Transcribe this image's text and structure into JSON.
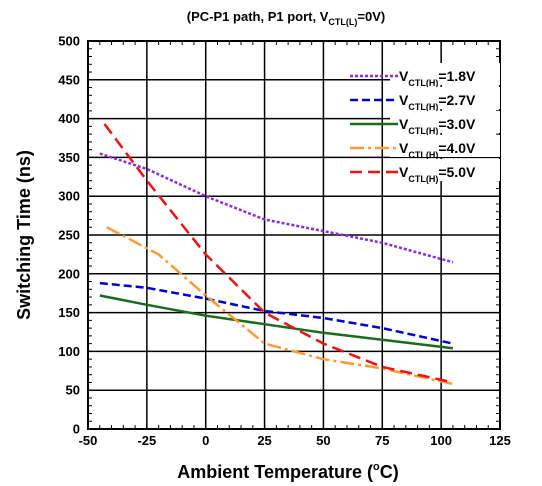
{
  "chart_data": {
    "type": "line",
    "title_partial": "",
    "subtitle": {
      "prefix": "(PC-P1 path, P1 port, V",
      "sub": "CTL(L)",
      "suffix": "=0V)"
    },
    "xlabel": "Ambient Temperature (",
    "xlabel_sup": "o",
    "xlabel_end": "C)",
    "ylabel": "Switching Time (ns)",
    "xlim": [
      -50,
      125
    ],
    "ylim": [
      0,
      500
    ],
    "xticks": [
      -50,
      -25,
      0,
      25,
      50,
      75,
      100,
      125
    ],
    "yticks": [
      0,
      50,
      100,
      150,
      200,
      250,
      300,
      350,
      400,
      450,
      500
    ],
    "grid": true,
    "legend_position": "top-right",
    "series": [
      {
        "name": "V",
        "name_sub": "CTL(H)",
        "name_end": "=1.8V",
        "color": "#8a2be2",
        "dash": "3,2",
        "points": [
          [
            -45,
            355
          ],
          [
            -25,
            335
          ],
          [
            0,
            300
          ],
          [
            25,
            270
          ],
          [
            50,
            255
          ],
          [
            75,
            240
          ],
          [
            105,
            215
          ]
        ]
      },
      {
        "name": "V",
        "name_sub": "CTL(H)",
        "name_end": "=2.7V",
        "color": "#0000cc",
        "dash": "8,4",
        "points": [
          [
            -45,
            188
          ],
          [
            -25,
            182
          ],
          [
            0,
            168
          ],
          [
            25,
            152
          ],
          [
            50,
            143
          ],
          [
            75,
            130
          ],
          [
            105,
            110
          ]
        ]
      },
      {
        "name": "V",
        "name_sub": "CTL(H)",
        "name_end": "=3.0V",
        "color": "#1a6b1a",
        "dash": "",
        "points": [
          [
            -45,
            172
          ],
          [
            -25,
            160
          ],
          [
            0,
            146
          ],
          [
            25,
            135
          ],
          [
            50,
            124
          ],
          [
            75,
            115
          ],
          [
            105,
            104
          ]
        ]
      },
      {
        "name": "V",
        "name_sub": "CTL(H)",
        "name_end": "=4.0V",
        "color": "#ff9933",
        "dash": "14,4,3,4",
        "points": [
          [
            -42,
            260
          ],
          [
            -20,
            225
          ],
          [
            0,
            172
          ],
          [
            15,
            135
          ],
          [
            25,
            110
          ],
          [
            50,
            90
          ],
          [
            75,
            78
          ],
          [
            105,
            58
          ]
        ]
      },
      {
        "name": "V",
        "name_sub": "CTL(H)",
        "name_end": "=5.0V",
        "color": "#ee1111",
        "dash": "12,6",
        "points": [
          [
            -43,
            393
          ],
          [
            -25,
            320
          ],
          [
            0,
            225
          ],
          [
            25,
            150
          ],
          [
            50,
            110
          ],
          [
            75,
            80
          ],
          [
            105,
            60
          ]
        ]
      }
    ]
  }
}
